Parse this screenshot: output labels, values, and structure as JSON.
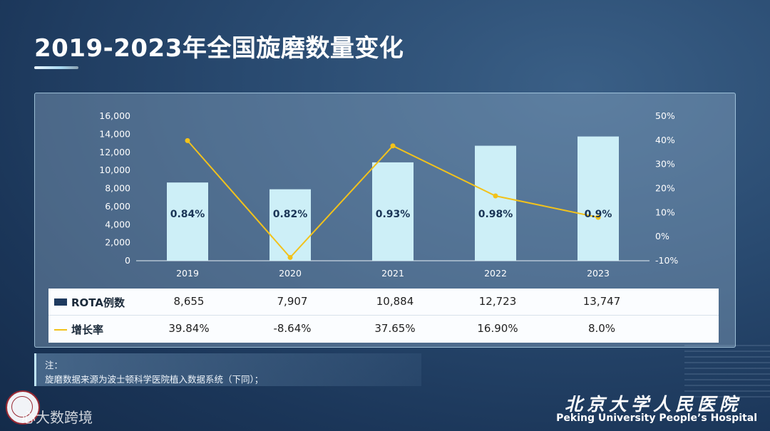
{
  "title": "2019-2023年全国旋磨数量变化",
  "chart_data": {
    "type": "bar",
    "categories": [
      "2019",
      "2020",
      "2021",
      "2022",
      "2023"
    ],
    "series": [
      {
        "name": "ROTA例数",
        "type": "bar",
        "values": [
          8655,
          7907,
          10884,
          12723,
          13747
        ],
        "axis": "left"
      },
      {
        "name": "增长率",
        "type": "line",
        "values": [
          39.84,
          -8.64,
          37.65,
          16.9,
          8.0
        ],
        "axis": "right"
      }
    ],
    "bar_labels": [
      "0.84%",
      "0.82%",
      "0.93%",
      "0.98%",
      "0.9%"
    ],
    "y_left": {
      "min": 0,
      "max": 16000,
      "ticks": [
        "0",
        "2,000",
        "4,000",
        "6,000",
        "8,000",
        "10,000",
        "12,000",
        "14,000",
        "16,000"
      ]
    },
    "y_right": {
      "min": -10,
      "max": 50,
      "ticks": [
        "-10%",
        "0%",
        "10%",
        "20%",
        "30%",
        "40%",
        "50%"
      ]
    },
    "grid": false,
    "colors": {
      "bar": "#cdeff7",
      "line": "#f2c21b"
    }
  },
  "table": {
    "rows": [
      {
        "label": "ROTA例数",
        "values": [
          "8,655",
          "7,907",
          "10,884",
          "12,723",
          "13,747"
        ]
      },
      {
        "label": "增长率",
        "values": [
          "39.84%",
          "-8.64%",
          "37.65%",
          "16.90%",
          "8.0%"
        ]
      }
    ]
  },
  "note": {
    "title": "注：",
    "text": "旋磨数据来源为波士顿科学医院植入数据系统（下同）；"
  },
  "footer": {
    "logo_text": "PEKING UNIVERSITY",
    "watermark": "心大数跨境",
    "hospital_cn": "北京大学人民医院",
    "hospital_en": "Peking University People’s Hospital"
  }
}
